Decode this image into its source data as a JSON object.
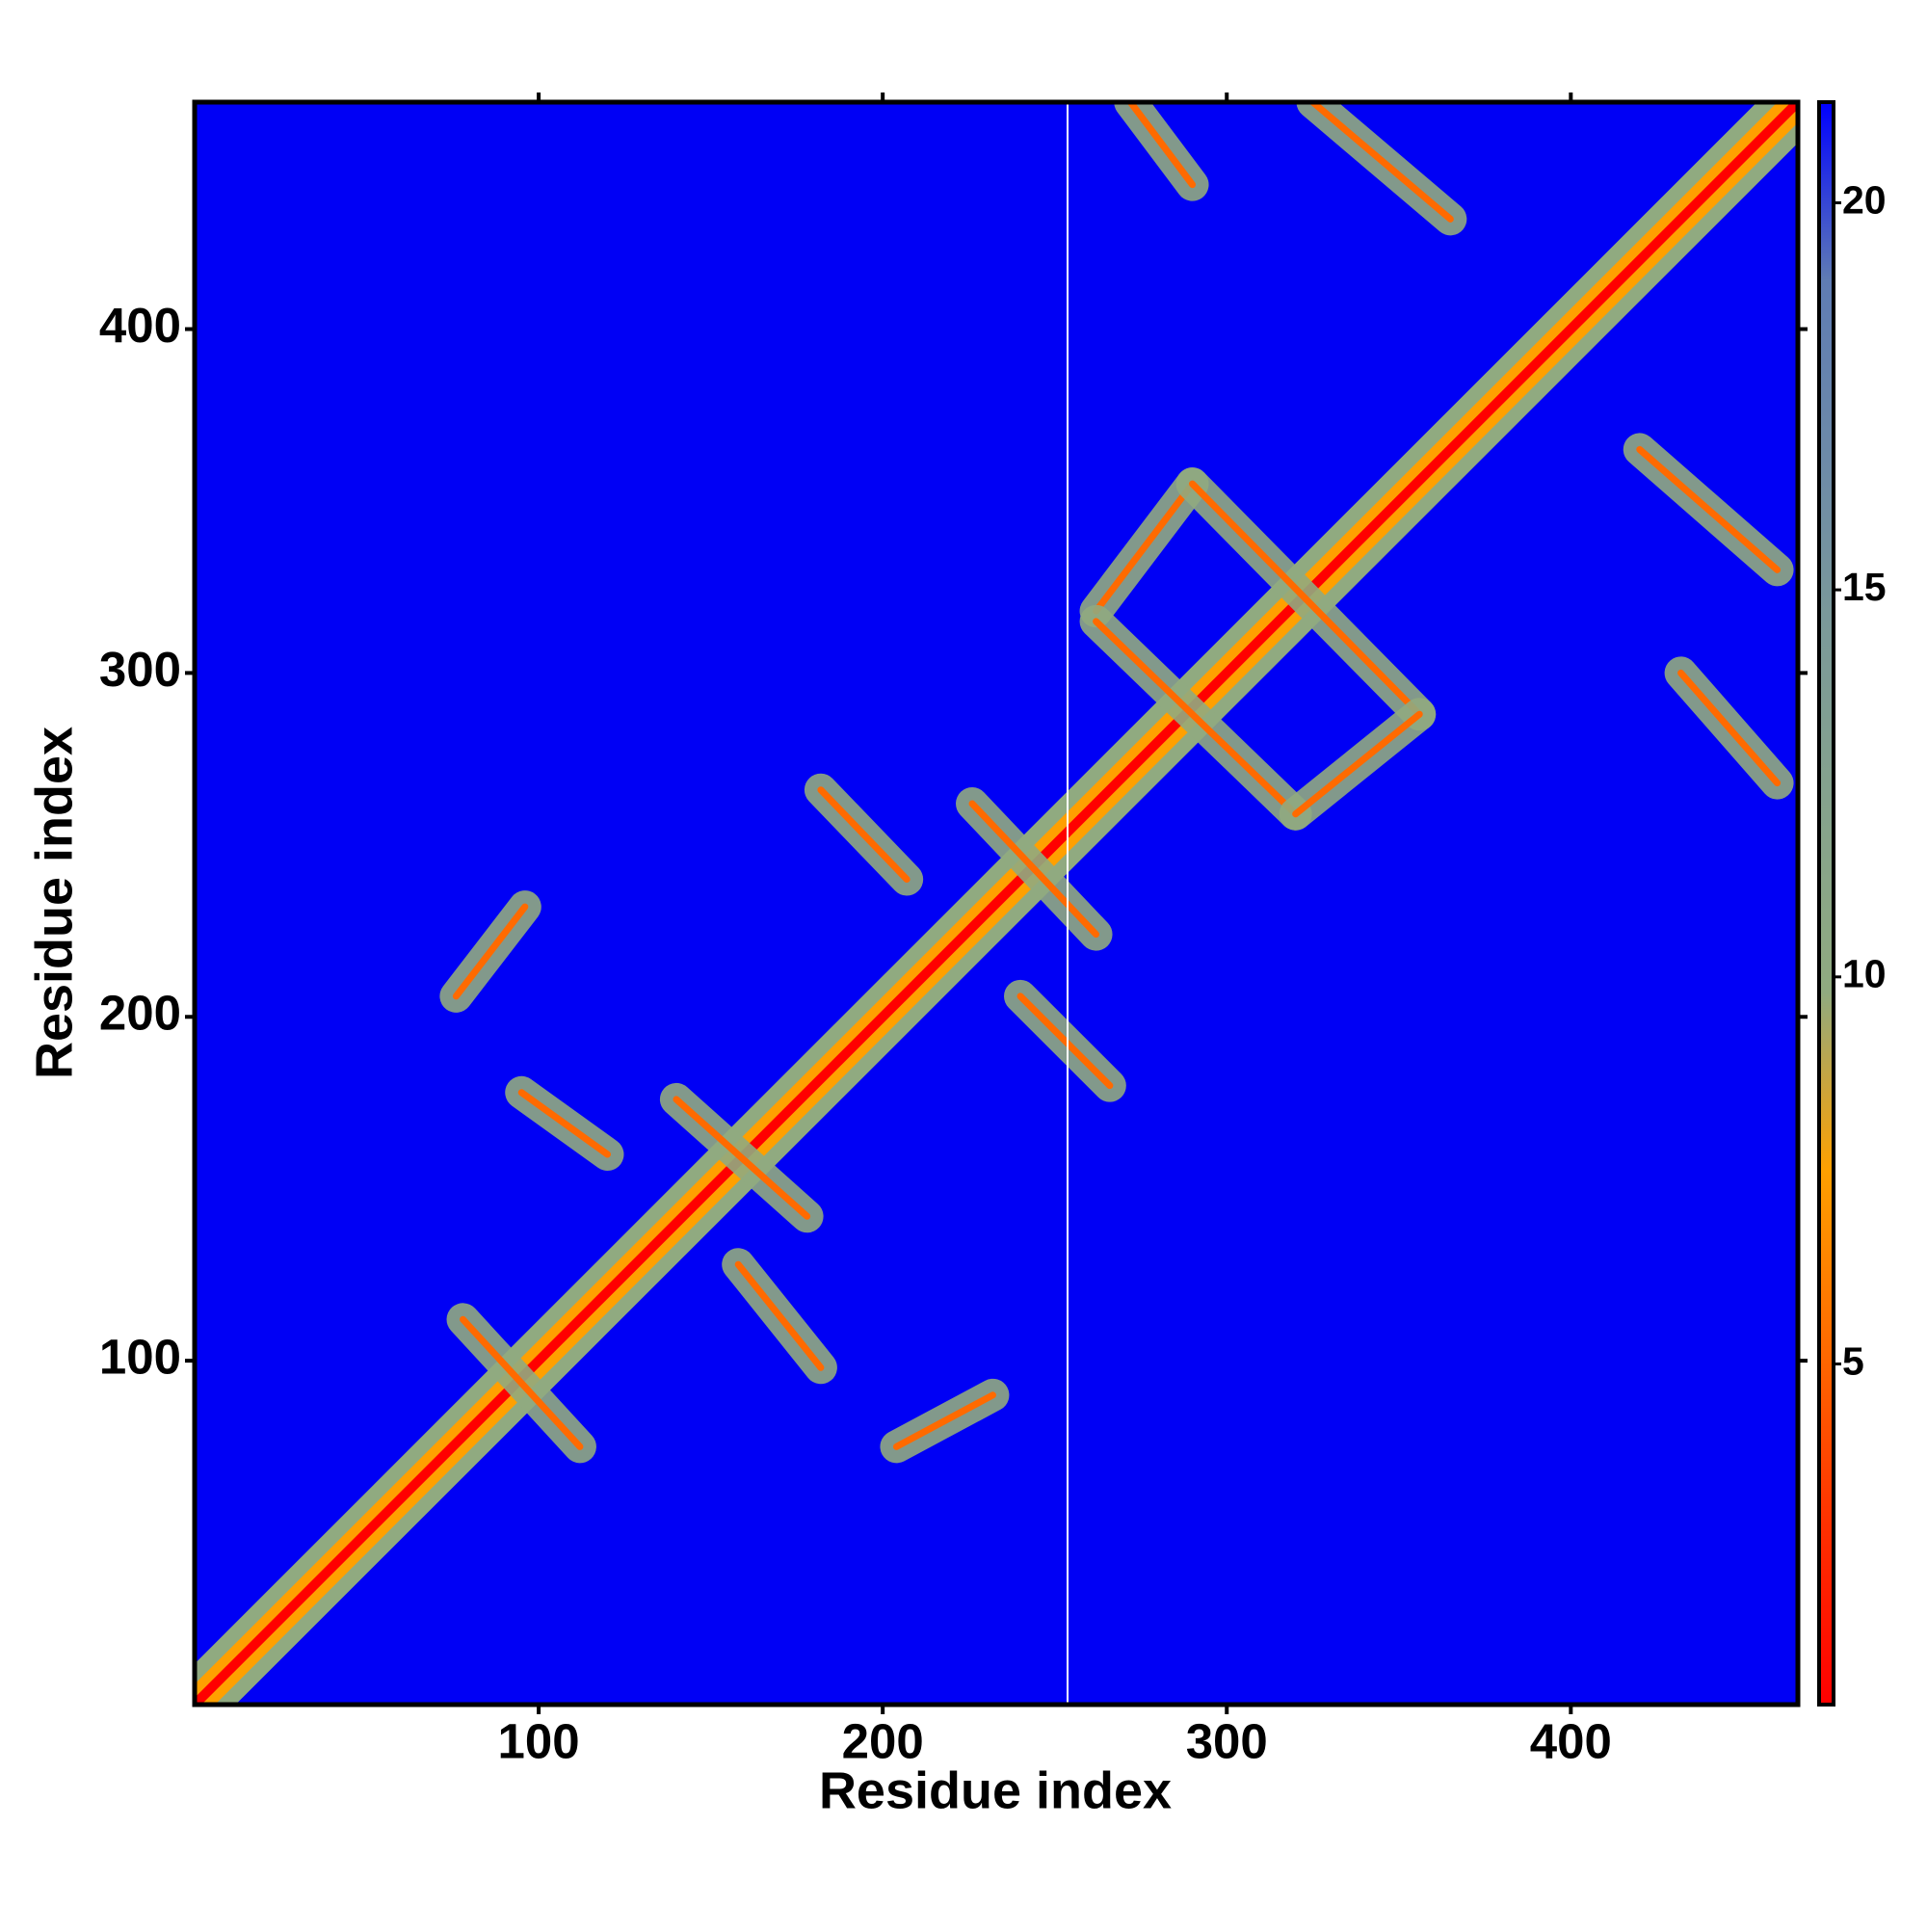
{
  "chart_data": {
    "type": "heatmap",
    "x_label": "Residue index",
    "y_label": "Residue index",
    "xlim": [
      0,
      466
    ],
    "ylim": [
      0,
      466
    ],
    "xticks": [
      100,
      200,
      300,
      400
    ],
    "yticks": [
      100,
      200,
      300,
      400
    ],
    "background_color": "#0000f5",
    "contacts": [
      {
        "x": [
          78,
          112
        ],
        "y": [
          112,
          75
        ]
      },
      {
        "x": [
          95,
          120
        ],
        "y": [
          178,
          160
        ]
      },
      {
        "x": [
          140,
          178
        ],
        "y": [
          176,
          142
        ]
      },
      {
        "x": [
          158,
          182
        ],
        "y": [
          128,
          98
        ]
      },
      {
        "x": [
          182,
          207
        ],
        "y": [
          266,
          240
        ]
      },
      {
        "x": [
          226,
          262
        ],
        "y": [
          262,
          224
        ]
      },
      {
        "x": [
          240,
          266
        ],
        "y": [
          206,
          180
        ]
      },
      {
        "x": [
          76,
          96
        ],
        "y": [
          206,
          232
        ]
      },
      {
        "x": [
          204,
          232
        ],
        "y": [
          75,
          90
        ]
      },
      {
        "x": [
          262,
          290
        ],
        "y": [
          318,
          355
        ]
      },
      {
        "x": [
          290,
          356
        ],
        "y": [
          355,
          288
        ]
      },
      {
        "x": [
          262,
          320
        ],
        "y": [
          315,
          259
        ]
      },
      {
        "x": [
          320,
          356
        ],
        "y": [
          259,
          288
        ]
      },
      {
        "x": [
          272,
          290
        ],
        "y": [
          466,
          442
        ]
      },
      {
        "x": [
          325,
          365
        ],
        "y": [
          466,
          432
        ]
      },
      {
        "x": [
          420,
          460
        ],
        "y": [
          365,
          330
        ]
      },
      {
        "x": [
          432,
          460
        ],
        "y": [
          300,
          268
        ]
      }
    ],
    "colorbar": {
      "lim": [
        0.6,
        21.3
      ],
      "ticks": [
        5,
        10,
        15,
        20
      ],
      "colors": [
        "#ff0000",
        "#ff3000",
        "#ff6a00",
        "#ffa000",
        "#90aa80",
        "#86a38c",
        "#7c9a98",
        "#6d8aa8",
        "#5f7cb4",
        "#0000ff"
      ]
    }
  }
}
